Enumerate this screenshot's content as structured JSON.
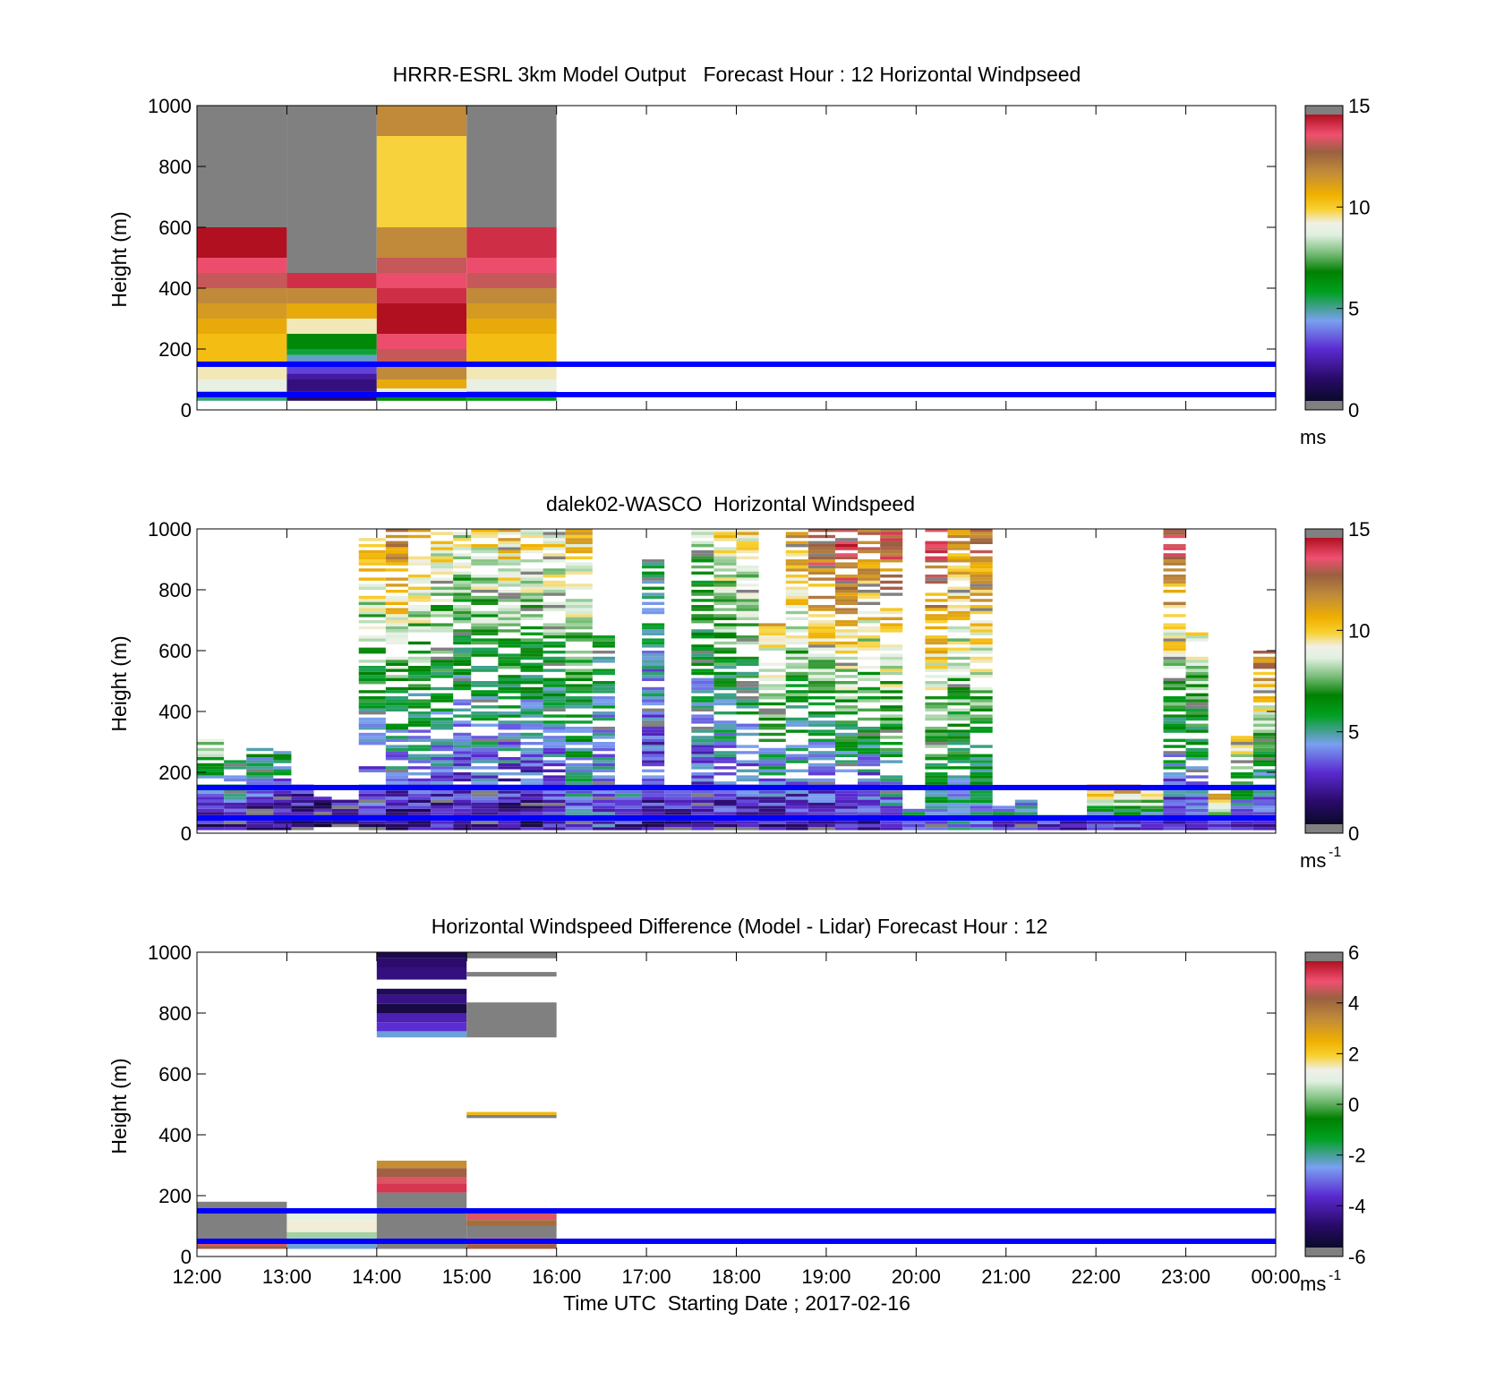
{
  "figure": {
    "time_axis_label": "Time UTC  Starting Date ; 2017-02-16",
    "time_ticks": [
      "12:00",
      "13:00",
      "14:00",
      "15:00",
      "16:00",
      "17:00",
      "18:00",
      "19:00",
      "20:00",
      "21:00",
      "22:00",
      "23:00",
      "00:00"
    ],
    "height_ticks": [
      "0",
      "200",
      "400",
      "600",
      "800",
      "1000"
    ],
    "reference_lines_m": [
      50,
      150
    ],
    "reference_line_color": "#0000ff"
  },
  "chart_data": [
    {
      "type": "heatmap",
      "title": "HRRR-ESRL 3km Model Output   Forecast Hour : 12 Horizontal Windpseed",
      "ylabel": "Height (m)",
      "xlabel": "",
      "ylim": [
        0,
        1000
      ],
      "xlim_hours": [
        12,
        24
      ],
      "colorbar": {
        "min": 0,
        "max": 15,
        "ticks": [
          "0",
          "5",
          "10",
          "15"
        ],
        "unit": "ms",
        "unit_sup": ""
      },
      "cells": [
        {
          "t0": 12,
          "t1": 13,
          "h0": 600,
          "h1": 1000,
          "v": 16
        },
        {
          "t0": 12,
          "t1": 13,
          "h0": 500,
          "h1": 600,
          "v": 15
        },
        {
          "t0": 12,
          "t1": 13,
          "h0": 450,
          "h1": 500,
          "v": 14
        },
        {
          "t0": 12,
          "t1": 13,
          "h0": 400,
          "h1": 450,
          "v": 13.5
        },
        {
          "t0": 12,
          "t1": 13,
          "h0": 350,
          "h1": 400,
          "v": 12
        },
        {
          "t0": 12,
          "t1": 13,
          "h0": 300,
          "h1": 350,
          "v": 11.5
        },
        {
          "t0": 12,
          "t1": 13,
          "h0": 250,
          "h1": 300,
          "v": 11
        },
        {
          "t0": 12,
          "t1": 13,
          "h0": 200,
          "h1": 250,
          "v": 10.5
        },
        {
          "t0": 12,
          "t1": 13,
          "h0": 150,
          "h1": 200,
          "v": 10.5
        },
        {
          "t0": 12,
          "t1": 13,
          "h0": 100,
          "h1": 150,
          "v": 9.5
        },
        {
          "t0": 12,
          "t1": 13,
          "h0": 60,
          "h1": 100,
          "v": 9
        },
        {
          "t0": 12,
          "t1": 13,
          "h0": 40,
          "h1": 60,
          "v": 6
        },
        {
          "t0": 12,
          "t1": 13,
          "h0": 30,
          "h1": 40,
          "v": 5
        },
        {
          "t0": 13,
          "t1": 14,
          "h0": 450,
          "h1": 1000,
          "v": 16
        },
        {
          "t0": 13,
          "t1": 14,
          "h0": 400,
          "h1": 450,
          "v": 14.5
        },
        {
          "t0": 13,
          "t1": 14,
          "h0": 350,
          "h1": 400,
          "v": 12
        },
        {
          "t0": 13,
          "t1": 14,
          "h0": 300,
          "h1": 350,
          "v": 11
        },
        {
          "t0": 13,
          "t1": 14,
          "h0": 250,
          "h1": 300,
          "v": 9.5
        },
        {
          "t0": 13,
          "t1": 14,
          "h0": 200,
          "h1": 250,
          "v": 6.5
        },
        {
          "t0": 13,
          "t1": 14,
          "h0": 180,
          "h1": 200,
          "v": 5.5
        },
        {
          "t0": 13,
          "t1": 14,
          "h0": 160,
          "h1": 180,
          "v": 4.5
        },
        {
          "t0": 13,
          "t1": 14,
          "h0": 120,
          "h1": 160,
          "v": 3
        },
        {
          "t0": 13,
          "t1": 14,
          "h0": 100,
          "h1": 120,
          "v": 2
        },
        {
          "t0": 13,
          "t1": 14,
          "h0": 60,
          "h1": 100,
          "v": 1.5
        },
        {
          "t0": 13,
          "t1": 14,
          "h0": 30,
          "h1": 60,
          "v": 1
        },
        {
          "t0": 14,
          "t1": 15,
          "h0": 900,
          "h1": 1000,
          "v": 12
        },
        {
          "t0": 14,
          "t1": 15,
          "h0": 600,
          "h1": 900,
          "v": 10
        },
        {
          "t0": 14,
          "t1": 15,
          "h0": 500,
          "h1": 600,
          "v": 12
        },
        {
          "t0": 14,
          "t1": 15,
          "h0": 450,
          "h1": 500,
          "v": 13.5
        },
        {
          "t0": 14,
          "t1": 15,
          "h0": 400,
          "h1": 450,
          "v": 14
        },
        {
          "t0": 14,
          "t1": 15,
          "h0": 350,
          "h1": 400,
          "v": 14.5
        },
        {
          "t0": 14,
          "t1": 15,
          "h0": 250,
          "h1": 350,
          "v": 15
        },
        {
          "t0": 14,
          "t1": 15,
          "h0": 200,
          "h1": 250,
          "v": 14
        },
        {
          "t0": 14,
          "t1": 15,
          "h0": 150,
          "h1": 200,
          "v": 13.5
        },
        {
          "t0": 14,
          "t1": 15,
          "h0": 100,
          "h1": 150,
          "v": 12
        },
        {
          "t0": 14,
          "t1": 15,
          "h0": 70,
          "h1": 100,
          "v": 11
        },
        {
          "t0": 14,
          "t1": 15,
          "h0": 50,
          "h1": 70,
          "v": 9
        },
        {
          "t0": 14,
          "t1": 15,
          "h0": 30,
          "h1": 50,
          "v": 6.5
        },
        {
          "t0": 15,
          "t1": 16,
          "h0": 600,
          "h1": 1000,
          "v": 16
        },
        {
          "t0": 15,
          "t1": 16,
          "h0": 500,
          "h1": 600,
          "v": 14.5
        },
        {
          "t0": 15,
          "t1": 16,
          "h0": 450,
          "h1": 500,
          "v": 14
        },
        {
          "t0": 15,
          "t1": 16,
          "h0": 400,
          "h1": 450,
          "v": 13.5
        },
        {
          "t0": 15,
          "t1": 16,
          "h0": 350,
          "h1": 400,
          "v": 12
        },
        {
          "t0": 15,
          "t1": 16,
          "h0": 300,
          "h1": 350,
          "v": 11.5
        },
        {
          "t0": 15,
          "t1": 16,
          "h0": 250,
          "h1": 300,
          "v": 11
        },
        {
          "t0": 15,
          "t1": 16,
          "h0": 200,
          "h1": 250,
          "v": 10.5
        },
        {
          "t0": 15,
          "t1": 16,
          "h0": 150,
          "h1": 200,
          "v": 10.5
        },
        {
          "t0": 15,
          "t1": 16,
          "h0": 100,
          "h1": 150,
          "v": 9.5
        },
        {
          "t0": 15,
          "t1": 16,
          "h0": 60,
          "h1": 100,
          "v": 9
        },
        {
          "t0": 15,
          "t1": 16,
          "h0": 40,
          "h1": 60,
          "v": 7
        },
        {
          "t0": 15,
          "t1": 16,
          "h0": 30,
          "h1": 40,
          "v": 6
        }
      ]
    },
    {
      "type": "heatmap",
      "title": "dalek02-WASCO  Horizontal Windspeed",
      "ylabel": "Height (m)",
      "xlabel": "",
      "ylim": [
        0,
        1000
      ],
      "xlim_hours": [
        12,
        24
      ],
      "colorbar": {
        "min": 0,
        "max": 15,
        "ticks": [
          "0",
          "5",
          "10",
          "15"
        ],
        "unit": "ms",
        "unit_sup": "-1"
      },
      "columns": [
        {
          "t0": 12.0,
          "t1": 12.3,
          "h0": 10,
          "h1": 310,
          "v0": 1.5,
          "v1": 9
        },
        {
          "t0": 12.3,
          "t1": 12.55,
          "h0": 10,
          "h1": 240,
          "v0": 1.5,
          "v1": 7
        },
        {
          "t0": 12.55,
          "t1": 12.85,
          "h0": 10,
          "h1": 280,
          "v0": 1.2,
          "v1": 6
        },
        {
          "t0": 12.85,
          "t1": 13.05,
          "h0": 10,
          "h1": 270,
          "v0": 1,
          "v1": 6
        },
        {
          "t0": 13.05,
          "t1": 13.3,
          "h0": 10,
          "h1": 160,
          "v0": 1.2,
          "v1": 3
        },
        {
          "t0": 13.3,
          "t1": 13.5,
          "h0": 20,
          "h1": 120,
          "v0": 1.5,
          "v1": 2
        },
        {
          "t0": 13.5,
          "t1": 13.8,
          "h0": 20,
          "h1": 110,
          "v0": 1.5,
          "v1": 2
        },
        {
          "t0": 13.8,
          "t1": 14.1,
          "h0": 10,
          "h1": 1000,
          "v0": 2,
          "v1": 11
        },
        {
          "t0": 14.1,
          "t1": 14.35,
          "h0": 10,
          "h1": 1000,
          "v0": 1.5,
          "v1": 13
        },
        {
          "t0": 14.35,
          "t1": 14.6,
          "h0": 10,
          "h1": 1000,
          "v0": 1.5,
          "v1": 11.5
        },
        {
          "t0": 14.6,
          "t1": 14.85,
          "h0": 10,
          "h1": 1000,
          "v0": 2,
          "v1": 10
        },
        {
          "t0": 14.85,
          "t1": 15.05,
          "h0": 10,
          "h1": 1000,
          "v0": 2,
          "v1": 9
        },
        {
          "t0": 15.05,
          "t1": 15.35,
          "h0": 10,
          "h1": 1000,
          "v0": 2,
          "v1": 10
        },
        {
          "t0": 15.35,
          "t1": 15.6,
          "h0": 10,
          "h1": 1000,
          "v0": 1.5,
          "v1": 10.5
        },
        {
          "t0": 15.6,
          "t1": 15.85,
          "h0": 10,
          "h1": 1000,
          "v0": 1.5,
          "v1": 10
        },
        {
          "t0": 15.85,
          "t1": 16.1,
          "h0": 10,
          "h1": 1000,
          "v0": 2,
          "v1": 10
        },
        {
          "t0": 16.1,
          "t1": 16.4,
          "h0": 10,
          "h1": 1000,
          "v0": 3,
          "v1": 10.5
        },
        {
          "t0": 16.4,
          "t1": 16.65,
          "h0": 10,
          "h1": 650,
          "v0": 3,
          "v1": 6
        },
        {
          "t0": 16.65,
          "t1": 16.95,
          "h0": 10,
          "h1": 160,
          "v0": 2,
          "v1": 5
        },
        {
          "t0": 16.95,
          "t1": 17.2,
          "h0": 10,
          "h1": 900,
          "v0": 2,
          "v1": 6
        },
        {
          "t0": 17.2,
          "t1": 17.5,
          "h0": 10,
          "h1": 150,
          "v0": 2,
          "v1": 3
        },
        {
          "t0": 17.5,
          "t1": 17.75,
          "h0": 10,
          "h1": 1000,
          "v0": 2,
          "v1": 8
        },
        {
          "t0": 17.75,
          "t1": 18.0,
          "h0": 10,
          "h1": 1000,
          "v0": 2,
          "v1": 10
        },
        {
          "t0": 18.0,
          "t1": 18.25,
          "h0": 10,
          "h1": 1000,
          "v0": 2,
          "v1": 10
        },
        {
          "t0": 18.25,
          "t1": 18.55,
          "h0": 10,
          "h1": 700,
          "v0": 2,
          "v1": 11
        },
        {
          "t0": 18.55,
          "t1": 18.8,
          "h0": 10,
          "h1": 1000,
          "v0": 2,
          "v1": 12
        },
        {
          "t0": 18.8,
          "t1": 19.1,
          "h0": 10,
          "h1": 1000,
          "v0": 1.5,
          "v1": 14
        },
        {
          "t0": 19.1,
          "t1": 19.35,
          "h0": 10,
          "h1": 1000,
          "v0": 2,
          "v1": 15
        },
        {
          "t0": 19.35,
          "t1": 19.6,
          "h0": 10,
          "h1": 1000,
          "v0": 2,
          "v1": 13
        },
        {
          "t0": 19.6,
          "t1": 19.85,
          "h0": 10,
          "h1": 1000,
          "v0": 3,
          "v1": 14
        },
        {
          "t0": 19.85,
          "t1": 20.1,
          "h0": 10,
          "h1": 80,
          "v0": 3,
          "v1": 5
        },
        {
          "t0": 20.1,
          "t1": 20.35,
          "h0": 10,
          "h1": 1000,
          "v0": 4,
          "v1": 14
        },
        {
          "t0": 20.35,
          "t1": 20.6,
          "h0": 10,
          "h1": 1000,
          "v0": 4,
          "v1": 12
        },
        {
          "t0": 20.6,
          "t1": 20.85,
          "h0": 10,
          "h1": 1000,
          "v0": 4,
          "v1": 13
        },
        {
          "t0": 20.85,
          "t1": 21.1,
          "h0": 10,
          "h1": 90,
          "v0": 3,
          "v1": 5
        },
        {
          "t0": 21.1,
          "t1": 21.35,
          "h0": 10,
          "h1": 110,
          "v0": 3,
          "v1": 4.5
        },
        {
          "t0": 21.35,
          "t1": 21.6,
          "h0": 10,
          "h1": 60,
          "v0": 3,
          "v1": 4
        },
        {
          "t0": 21.6,
          "t1": 21.9,
          "h0": 10,
          "h1": 60,
          "v0": 2.5,
          "v1": 3.5
        },
        {
          "t0": 21.9,
          "t1": 22.2,
          "h0": 10,
          "h1": 160,
          "v0": 2,
          "v1": 12
        },
        {
          "t0": 22.2,
          "t1": 22.5,
          "h0": 10,
          "h1": 160,
          "v0": 2,
          "v1": 13
        },
        {
          "t0": 22.5,
          "t1": 22.75,
          "h0": 10,
          "h1": 150,
          "v0": 2,
          "v1": 12
        },
        {
          "t0": 22.75,
          "t1": 23.0,
          "h0": 10,
          "h1": 1000,
          "v0": 2,
          "v1": 14
        },
        {
          "t0": 23.0,
          "t1": 23.25,
          "h0": 10,
          "h1": 660,
          "v0": 2,
          "v1": 10
        },
        {
          "t0": 23.25,
          "t1": 23.5,
          "h0": 10,
          "h1": 130,
          "v0": 2,
          "v1": 12
        },
        {
          "t0": 23.5,
          "t1": 23.75,
          "h0": 10,
          "h1": 320,
          "v0": 2,
          "v1": 11
        },
        {
          "t0": 23.75,
          "t1": 24.0,
          "h0": 10,
          "h1": 610,
          "v0": 2,
          "v1": 13
        }
      ]
    },
    {
      "type": "heatmap",
      "title": "Horizontal Windspeed Difference (Model - Lidar) Forecast Hour : 12",
      "ylabel": "Height (m)",
      "xlabel": "Time UTC  Starting Date ; 2017-02-16",
      "ylim": [
        0,
        1000
      ],
      "xlim_hours": [
        12,
        24
      ],
      "colorbar": {
        "min": -6,
        "max": 6,
        "ticks": [
          "-6",
          "-4",
          "-2",
          "0",
          "2",
          "4",
          "6"
        ],
        "unit": "ms",
        "unit_sup": "-1"
      },
      "cells": [
        {
          "t0": 12,
          "t1": 13,
          "h0": 50,
          "h1": 180,
          "v": 6.5
        },
        {
          "t0": 12,
          "t1": 13,
          "h0": 35,
          "h1": 50,
          "v": 5
        },
        {
          "t0": 12,
          "t1": 13,
          "h0": 25,
          "h1": 35,
          "v": 4.5
        },
        {
          "t0": 13,
          "t1": 14,
          "h0": 120,
          "h1": 140,
          "v": 1
        },
        {
          "t0": 13,
          "t1": 14,
          "h0": 80,
          "h1": 120,
          "v": 1.5
        },
        {
          "t0": 13,
          "t1": 14,
          "h0": 50,
          "h1": 80,
          "v": 0.5
        },
        {
          "t0": 13,
          "t1": 14,
          "h0": 25,
          "h1": 50,
          "v": -2.5
        },
        {
          "t0": 14,
          "t1": 15,
          "h0": 980,
          "h1": 1000,
          "v": -5.5
        },
        {
          "t0": 14,
          "t1": 15,
          "h0": 950,
          "h1": 980,
          "v": -5
        },
        {
          "t0": 14,
          "t1": 15,
          "h0": 910,
          "h1": 950,
          "v": -4.8
        },
        {
          "t0": 14,
          "t1": 15,
          "h0": 860,
          "h1": 880,
          "v": -5.3
        },
        {
          "t0": 14,
          "t1": 15,
          "h0": 830,
          "h1": 860,
          "v": -4.7
        },
        {
          "t0": 14,
          "t1": 15,
          "h0": 800,
          "h1": 830,
          "v": -5.6
        },
        {
          "t0": 14,
          "t1": 15,
          "h0": 770,
          "h1": 800,
          "v": -4.2
        },
        {
          "t0": 14,
          "t1": 15,
          "h0": 740,
          "h1": 770,
          "v": -3.8
        },
        {
          "t0": 14,
          "t1": 15,
          "h0": 720,
          "h1": 740,
          "v": -2.5
        },
        {
          "t0": 14,
          "t1": 15,
          "h0": 290,
          "h1": 315,
          "v": 3.5
        },
        {
          "t0": 14,
          "t1": 15,
          "h0": 260,
          "h1": 290,
          "v": 4.5
        },
        {
          "t0": 14,
          "t1": 15,
          "h0": 240,
          "h1": 260,
          "v": 5
        },
        {
          "t0": 14,
          "t1": 15,
          "h0": 210,
          "h1": 240,
          "v": 5.5
        },
        {
          "t0": 14,
          "t1": 15,
          "h0": 25,
          "h1": 210,
          "v": 6.5
        },
        {
          "t0": 15,
          "t1": 16,
          "h0": 980,
          "h1": 1000,
          "v": 6.5
        },
        {
          "t0": 15,
          "t1": 16,
          "h0": 920,
          "h1": 935,
          "v": 6.5
        },
        {
          "t0": 15,
          "t1": 16,
          "h0": 720,
          "h1": 835,
          "v": 6.5
        },
        {
          "t0": 15,
          "t1": 16,
          "h0": 465,
          "h1": 475,
          "v": 2.5
        },
        {
          "t0": 15,
          "t1": 16,
          "h0": 455,
          "h1": 465,
          "v": 6.5
        },
        {
          "t0": 15,
          "t1": 16,
          "h0": 140,
          "h1": 155,
          "v": 4.5
        },
        {
          "t0": 15,
          "t1": 16,
          "h0": 120,
          "h1": 140,
          "v": 5
        },
        {
          "t0": 15,
          "t1": 16,
          "h0": 100,
          "h1": 120,
          "v": 4.2
        },
        {
          "t0": 15,
          "t1": 16,
          "h0": 60,
          "h1": 100,
          "v": 6.5
        },
        {
          "t0": 15,
          "t1": 16,
          "h0": 40,
          "h1": 60,
          "v": 5
        },
        {
          "t0": 15,
          "t1": 16,
          "h0": 25,
          "h1": 40,
          "v": 4.5
        }
      ]
    }
  ]
}
